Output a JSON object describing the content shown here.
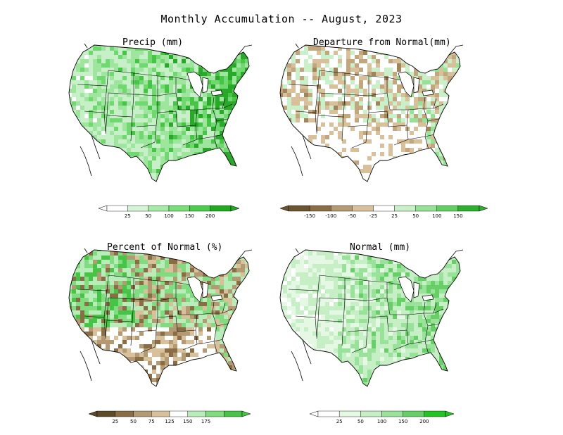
{
  "title": "Monthly Accumulation -- August, 2023",
  "panels": [
    {
      "id": "precip",
      "title": "Precip (mm)",
      "colorbar": {
        "colors": [
          "#ffffff",
          "#d6f5d6",
          "#a6eba6",
          "#78de78",
          "#4ccc4c",
          "#22a822"
        ],
        "ticks": [
          "25",
          "50",
          "100",
          "150",
          "200"
        ]
      },
      "palette": [
        "#ffffff",
        "#c8f0c8",
        "#9ee69e",
        "#6fd86f",
        "#46c446",
        "#2aa82a"
      ],
      "weights": [
        0.28,
        0.3,
        0.2,
        0.12,
        0.07,
        0.03
      ]
    },
    {
      "id": "departure",
      "title": "Departure from Normal(mm)",
      "colorbar": {
        "colors": [
          "#6b5530",
          "#8a6d45",
          "#b39a72",
          "#d7c09a",
          "#ffffff",
          "#c9f0c9",
          "#96e196",
          "#62cf62",
          "#2eb02e"
        ],
        "ticks": [
          "-150",
          "-100",
          "-50",
          "-25",
          "25",
          "50",
          "100",
          "150"
        ]
      },
      "palette": [
        "#ffffff",
        "#d7c09a",
        "#c2a77e",
        "#a1855a",
        "#c9f0c9",
        "#96e196",
        "#62cf62"
      ],
      "weights": [
        0.42,
        0.12,
        0.08,
        0.03,
        0.17,
        0.12,
        0.06
      ]
    },
    {
      "id": "percent",
      "title": "Percent of Normal (%)",
      "colorbar": {
        "colors": [
          "#5e4a28",
          "#8a6d45",
          "#b39a72",
          "#d7c09a",
          "#ffffff",
          "#b8ecb8",
          "#7fdc7f",
          "#45c445"
        ],
        "ticks": [
          "25",
          "50",
          "75",
          "125",
          "150",
          "175"
        ]
      },
      "palette": [
        "#ffffff",
        "#d7c09a",
        "#b39a72",
        "#8a6d45",
        "#b8ecb8",
        "#7fdc7f",
        "#45c445"
      ],
      "weights": [
        0.16,
        0.14,
        0.12,
        0.08,
        0.16,
        0.17,
        0.17
      ]
    },
    {
      "id": "normal",
      "title": "Normal (mm)",
      "colorbar": {
        "colors": [
          "#ffffff",
          "#e4f8e4",
          "#c6efc6",
          "#99e299",
          "#66d066",
          "#22c422"
        ],
        "ticks": [
          "25",
          "50",
          "100",
          "150",
          "200"
        ]
      },
      "palette": [
        "#ffffff",
        "#e4f8e4",
        "#c6efc6",
        "#99e299",
        "#66d066"
      ],
      "weights": [
        0.2,
        0.3,
        0.28,
        0.17,
        0.05
      ]
    }
  ]
}
